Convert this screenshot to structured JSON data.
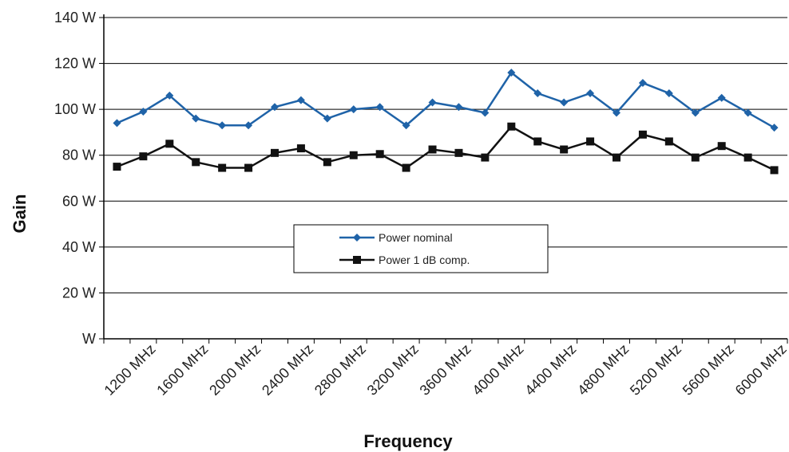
{
  "chart_data": {
    "type": "line",
    "title": "",
    "xlabel": "Frequency",
    "ylabel": "Gain",
    "x_tick_labels": [
      "1200 MHz",
      "1600 MHz",
      "2000 MHz",
      "2400 MHz",
      "2800 MHz",
      "3200 MHz",
      "3600 MHz",
      "4000 MHz",
      "4400 MHz",
      "4800 MHz",
      "5200 MHz",
      "5600 MHz",
      "6000 MHz"
    ],
    "y_tick_labels": [
      "W",
      "20 W",
      "40 W",
      "60 W",
      "80 W",
      "100 W",
      "120 W",
      "140 W"
    ],
    "ylim": [
      0,
      140
    ],
    "y_tick_values": [
      0,
      20,
      40,
      60,
      80,
      100,
      120,
      140
    ],
    "x": [
      1200,
      1400,
      1600,
      1800,
      2000,
      2200,
      2400,
      2600,
      2800,
      3000,
      3200,
      3400,
      3600,
      3800,
      4000,
      4200,
      4400,
      4600,
      4800,
      5000,
      5200,
      5400,
      5600,
      5800,
      6000,
      6200
    ],
    "grid": "horizontal",
    "legend_position": "center",
    "series": [
      {
        "name": "Power nominal",
        "color": "#1f63a8",
        "marker": "diamond",
        "values": [
          94,
          99,
          106,
          96,
          93,
          93,
          101,
          104,
          96,
          100,
          101,
          93,
          103,
          101,
          98.5,
          116,
          107,
          103,
          107,
          98.5,
          111.5,
          107,
          98.5,
          105,
          98.5,
          92
        ]
      },
      {
        "name": "Power 1 dB comp.",
        "color": "#111111",
        "marker": "square",
        "values": [
          75,
          79.5,
          85,
          77,
          74.5,
          74.5,
          81,
          83,
          77,
          80,
          80.5,
          74.5,
          82.5,
          81,
          79,
          92.5,
          86,
          82.5,
          86,
          79,
          89,
          86,
          79,
          84,
          79,
          73.5
        ]
      }
    ]
  }
}
